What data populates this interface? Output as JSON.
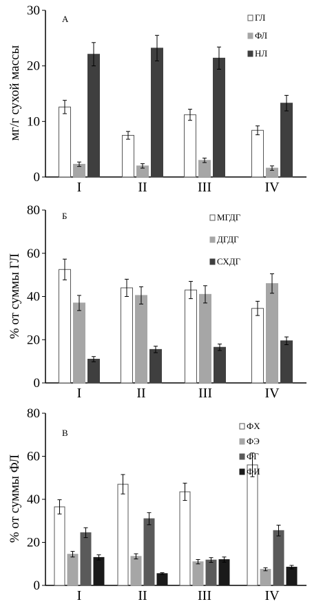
{
  "chart_data": [
    {
      "type": "bar",
      "panel_letter": "А",
      "ylabel": "мг/г сухой массы",
      "ylim": [
        0,
        30
      ],
      "yticks": [
        0,
        10,
        20,
        30
      ],
      "categories": [
        "I",
        "II",
        "III",
        "IV"
      ],
      "legend_position": "top-right",
      "series": [
        {
          "name": "ГЛ",
          "color": "#ffffff",
          "values": [
            12.6,
            7.5,
            11.2,
            8.4
          ],
          "errors": [
            1.2,
            0.7,
            1.0,
            0.8
          ]
        },
        {
          "name": "ФЛ",
          "color": "#a6a6a6",
          "values": [
            2.3,
            2.0,
            3.0,
            1.6
          ],
          "errors": [
            0.4,
            0.4,
            0.4,
            0.4
          ]
        },
        {
          "name": "НЛ",
          "color": "#3f3f3f",
          "values": [
            22.1,
            23.2,
            21.4,
            13.3
          ],
          "errors": [
            2.1,
            2.3,
            2.0,
            1.4
          ]
        }
      ]
    },
    {
      "type": "bar",
      "panel_letter": "Б",
      "ylabel": "% от суммы ГЛ",
      "ylim": [
        0,
        80
      ],
      "yticks": [
        0,
        20,
        40,
        60,
        80
      ],
      "categories": [
        "I",
        "II",
        "III",
        "IV"
      ],
      "legend_position": "top-right",
      "series": [
        {
          "name": "МГДГ",
          "color": "#ffffff",
          "values": [
            52.5,
            44.0,
            43.0,
            34.5
          ],
          "errors": [
            4.8,
            4.0,
            4.0,
            3.3
          ]
        },
        {
          "name": "ДГДГ",
          "color": "#a6a6a6",
          "values": [
            37.0,
            40.5,
            41.0,
            46.0
          ],
          "errors": [
            3.5,
            4.0,
            4.0,
            4.5
          ]
        },
        {
          "name": "СХДГ",
          "color": "#3f3f3f",
          "values": [
            11.0,
            15.5,
            16.5,
            19.5
          ],
          "errors": [
            1.2,
            1.5,
            1.5,
            1.8
          ]
        }
      ]
    },
    {
      "type": "bar",
      "panel_letter": "В",
      "ylabel": "% от суммы ФЛ",
      "ylim": [
        0,
        80
      ],
      "yticks": [
        0,
        20,
        40,
        60,
        80
      ],
      "categories": [
        "I",
        "II",
        "III",
        "IV"
      ],
      "legend_position": "top-right",
      "series": [
        {
          "name": "ФХ",
          "color": "#ffffff",
          "values": [
            36.5,
            47.0,
            43.5,
            56.0
          ],
          "errors": [
            3.3,
            4.5,
            4.0,
            5.5
          ]
        },
        {
          "name": "ФЭ",
          "color": "#a6a6a6",
          "values": [
            14.5,
            13.5,
            11.0,
            7.5
          ],
          "errors": [
            1.3,
            1.2,
            1.0,
            0.7
          ]
        },
        {
          "name": "ФГ",
          "color": "#5a5a5a",
          "values": [
            24.5,
            31.0,
            11.8,
            25.5
          ],
          "errors": [
            2.3,
            2.8,
            1.1,
            2.5
          ]
        },
        {
          "name": "ФИ",
          "color": "#1a1a1a",
          "values": [
            13.0,
            5.5,
            12.0,
            8.5
          ],
          "errors": [
            1.2,
            0.4,
            1.2,
            0.8
          ]
        }
      ]
    }
  ]
}
